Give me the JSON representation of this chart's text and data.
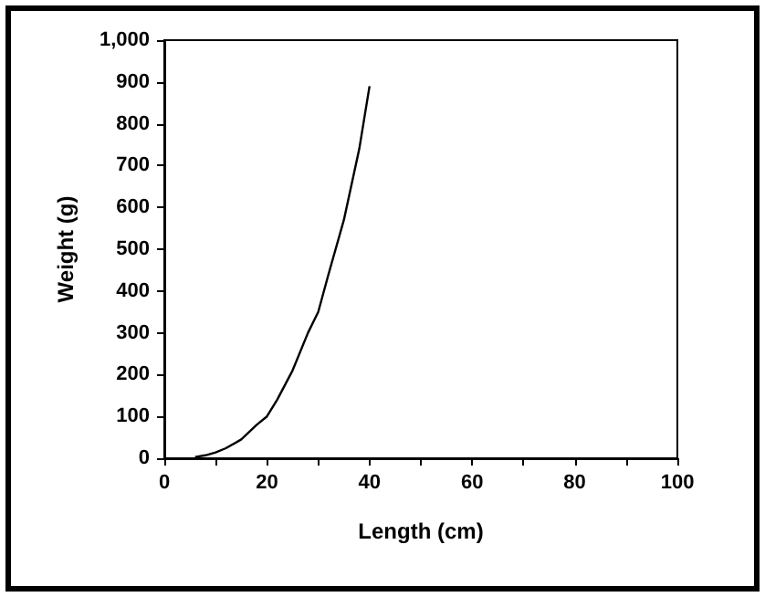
{
  "chart_data": {
    "type": "line",
    "xlabel": "Length (cm)",
    "ylabel": "Weight (g)",
    "x": [
      6,
      8,
      10,
      12,
      15,
      18,
      20,
      22,
      25,
      28,
      30,
      32,
      35,
      38,
      40
    ],
    "series": [
      {
        "color": "#000000",
        "values": [
          3,
          7,
          14,
          24,
          45,
          80,
          100,
          140,
          210,
          300,
          350,
          440,
          570,
          740,
          890
        ]
      }
    ],
    "xlim": [
      0,
      100
    ],
    "xticks": [
      0,
      {
        "value": 10,
        "label": null
      },
      20,
      {
        "value": 30,
        "label": null
      },
      40,
      {
        "value": 50,
        "label": null
      },
      60,
      {
        "value": 70,
        "label": null
      },
      80,
      {
        "value": 90,
        "label": null
      },
      100
    ],
    "ylim": [
      0,
      1000
    ],
    "yticks": [
      0,
      100,
      200,
      300,
      400,
      500,
      600,
      700,
      800,
      900,
      {
        "value": 1000,
        "label": "1,000"
      }
    ],
    "grid": false,
    "marker": "none",
    "line_style": "solid"
  }
}
